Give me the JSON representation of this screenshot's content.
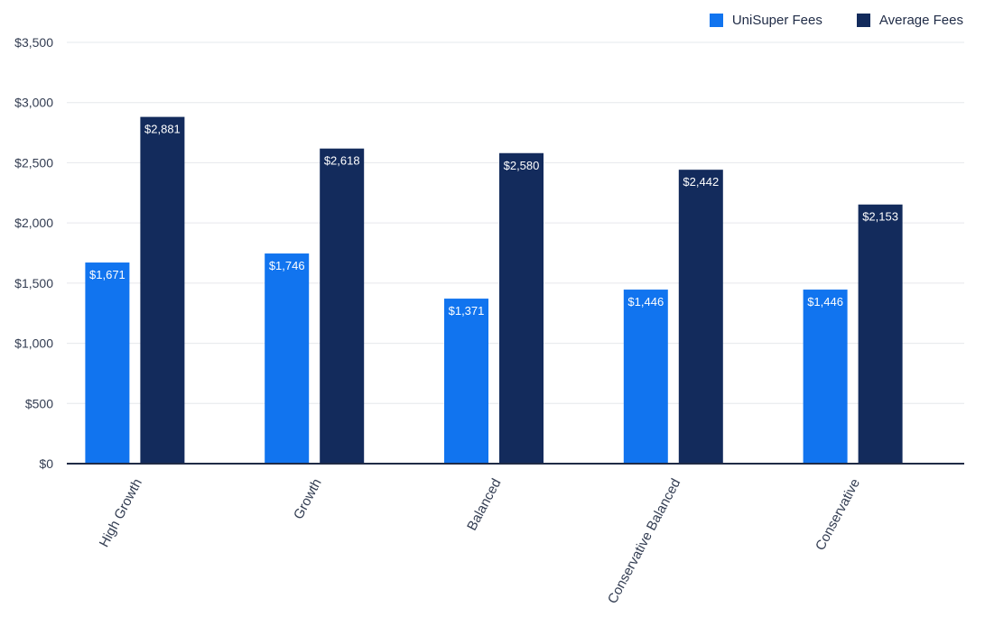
{
  "chart_data": {
    "type": "bar",
    "categories": [
      "High Growth",
      "Growth",
      "Balanced",
      "Conservative Balanced",
      "Conservative"
    ],
    "series": [
      {
        "name": "UniSuper Fees",
        "color": "#1174ef",
        "values": [
          1671,
          1746,
          1371,
          1446,
          1446
        ],
        "labels": [
          "$1,671",
          "$1,746",
          "$1,371",
          "$1,446",
          "$1,446"
        ]
      },
      {
        "name": "Average Fees",
        "color": "#132b5c",
        "values": [
          2881,
          2618,
          2580,
          2442,
          2153
        ],
        "labels": [
          "$2,881",
          "$2,618",
          "$2,580",
          "$2,442",
          "$2,153"
        ]
      }
    ],
    "y_ticks": [
      "$0",
      "$500",
      "$1,000",
      "$1,500",
      "$2,000",
      "$2,500",
      "$3,000",
      "$3,500"
    ],
    "ylim": [
      0,
      3500
    ],
    "grid": true,
    "legend_position": "top-right",
    "title": "",
    "xlabel": "",
    "ylabel": ""
  }
}
